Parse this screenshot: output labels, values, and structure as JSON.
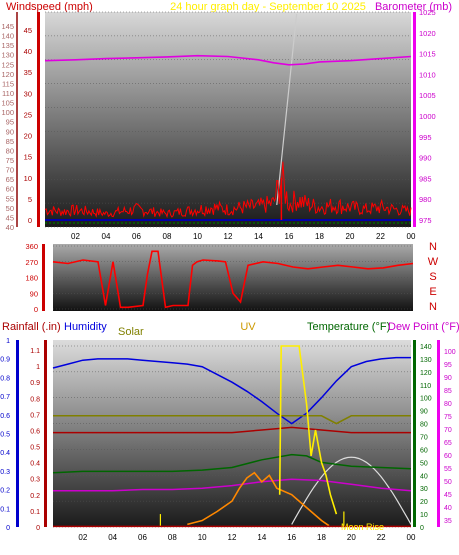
{
  "header": {
    "left_label": "Windspeed (mph)",
    "center_label": "24 hour graph day - September 10 2025",
    "right_label": "Barometer (mb)"
  },
  "colors": {
    "wind": "#ff0000",
    "gust_baseline": "#0000aa",
    "barometer": "#e000e0",
    "solar_top": "#cccccc",
    "wind_dir": "#ff0000",
    "rainfall": "#aa0000",
    "humidity": "#0000dd",
    "solar": "#808000",
    "uv": "#ffee00",
    "temperature": "#006600",
    "dew_point": "#cc00cc",
    "thsw": "#ff8800",
    "moon": "#dddddd"
  },
  "panel3_labels": {
    "rainfall": "Rainfall (.in)",
    "humidity": "Humidity",
    "thsw": "THSW",
    "solar": "Solar",
    "uv": "UV",
    "temperature": "Temperature (°F)",
    "dew_point": "Dew Point (°F)",
    "moon_rise": "Moon Rise"
  },
  "chart_data": [
    {
      "type": "line",
      "x_ticks": [
        "02",
        "04",
        "06",
        "08",
        "10",
        "12",
        "14",
        "16",
        "18",
        "20",
        "22",
        "00"
      ],
      "y_left_ticks": [
        "40",
        "45",
        "50",
        "55",
        "60",
        "65",
        "70",
        "75",
        "80",
        "85",
        "90",
        "95",
        "100",
        "105",
        "110",
        "115",
        "120",
        "125",
        "130",
        "135",
        "140",
        "145"
      ],
      "y_left_ticks_inner": [
        "0",
        "5",
        "10",
        "15",
        "20",
        "25",
        "30",
        "35",
        "40",
        "45"
      ],
      "y_right_ticks": [
        "975",
        "980",
        "985",
        "990",
        "995",
        "1000",
        "1005",
        "1010",
        "1015",
        "1020",
        "1025"
      ],
      "ylim_wind": [
        0,
        45
      ],
      "ylim_baro": [
        975,
        1025
      ],
      "xlim_hours": [
        0,
        24
      ],
      "series": [
        {
          "name": "Barometer (mb)",
          "x": [
            0,
            2,
            4,
            6,
            8,
            10,
            12,
            14,
            15,
            16,
            17,
            18,
            20,
            22,
            24
          ],
          "y": [
            1013.3,
            1013.5,
            1013.8,
            1014.0,
            1014.2,
            1014.5,
            1014.3,
            1013.5,
            1012.8,
            1012.3,
            1012.5,
            1013.0,
            1013.3,
            1013.8,
            1014.3
          ]
        },
        {
          "name": "Windspeed (mph)",
          "x": [
            0,
            1,
            2,
            3,
            4,
            5,
            6,
            7,
            8,
            9,
            10,
            11,
            12,
            13,
            14,
            15,
            15.5,
            16,
            16.5,
            17,
            18,
            19,
            20,
            21,
            22,
            23,
            24
          ],
          "y": [
            2.5,
            2,
            2.3,
            2,
            1.5,
            2,
            2.5,
            2,
            1.5,
            2,
            2.5,
            3,
            2.5,
            3,
            3.2,
            4,
            10,
            3.5,
            5,
            4,
            3,
            3.5,
            3,
            2.5,
            3,
            2.5,
            2
          ]
        }
      ]
    },
    {
      "type": "line",
      "x_ticks": [
        "02",
        "04",
        "06",
        "08",
        "10",
        "12",
        "14",
        "16",
        "18",
        "20",
        "22",
        "00"
      ],
      "y_ticks": [
        "0",
        "90",
        "180",
        "270",
        "360"
      ],
      "compass": [
        "N",
        "W",
        "S",
        "E",
        "N"
      ],
      "ylim": [
        0,
        360
      ],
      "xlim_hours": [
        0,
        24
      ],
      "series": [
        {
          "name": "Wind direction",
          "x": [
            0,
            1,
            2,
            3,
            3.5,
            4,
            4.5,
            5,
            6,
            6.3,
            6.6,
            7,
            7.5,
            8,
            9,
            9.3,
            9.6,
            10,
            11,
            11.5,
            12,
            12.5,
            13,
            14,
            15,
            16,
            17,
            18,
            19,
            20,
            21,
            22,
            23,
            24
          ],
          "y": [
            270,
            260,
            280,
            270,
            20,
            270,
            10,
            10,
            20,
            200,
            330,
            330,
            10,
            20,
            20,
            250,
            270,
            280,
            275,
            270,
            90,
            40,
            250,
            270,
            260,
            240,
            230,
            240,
            250,
            240,
            230,
            235,
            250,
            260
          ]
        }
      ]
    },
    {
      "type": "line",
      "x_ticks": [
        "02",
        "04",
        "06",
        "08",
        "10",
        "12",
        "14",
        "16",
        "18",
        "20",
        "22",
        "00"
      ],
      "y_rain_ticks": [
        "0",
        "0.1",
        "0.2",
        "0.3",
        "0.4",
        "0.5",
        "0.6",
        "0.7",
        "0.8",
        "0.9",
        "1"
      ],
      "y_humidity_ticks": [
        "0",
        "0.1",
        "0.2",
        "0.3",
        "0.4",
        "0.5",
        "0.6",
        "0.7",
        "0.8",
        "0.9",
        "1",
        "1.1"
      ],
      "y_temp_ticks": [
        "0",
        "10",
        "20",
        "30",
        "40",
        "50",
        "60",
        "70",
        "80",
        "90",
        "100",
        "110",
        "120",
        "130",
        "140"
      ],
      "y_dew_ticks": [
        "35",
        "40",
        "45",
        "50",
        "55",
        "60",
        "65",
        "70",
        "75",
        "80",
        "85",
        "90",
        "95",
        "100"
      ],
      "ylim_temp": [
        0,
        140
      ],
      "xlim_hours": [
        0,
        24
      ],
      "series": [
        {
          "name": "Humidity",
          "x": [
            0,
            1,
            2,
            3,
            4,
            5,
            6,
            7,
            8,
            9,
            10,
            11,
            12,
            13,
            14,
            15,
            16,
            17,
            18,
            19,
            20,
            21,
            22,
            23,
            24
          ],
          "y": [
            123,
            126,
            129,
            130,
            130,
            130,
            129,
            128,
            127,
            126,
            124,
            118,
            112,
            105,
            97,
            88,
            80,
            88,
            100,
            113,
            124,
            128,
            130,
            131,
            131
          ]
        },
        {
          "name": "Solar",
          "x": [
            0,
            2,
            4,
            6,
            8,
            10,
            12,
            14,
            16,
            18,
            19,
            20,
            22,
            24
          ],
          "y": [
            86,
            86,
            86,
            86,
            86,
            86,
            86,
            86,
            86,
            86,
            80,
            86,
            86,
            86
          ]
        },
        {
          "name": "Rainfall (.in)",
          "x": [
            0,
            4,
            8,
            12,
            14,
            16,
            18,
            20,
            24
          ],
          "y": [
            73,
            73,
            73,
            73,
            75,
            77,
            75,
            73,
            73
          ]
        },
        {
          "name": "Temperature (°F)",
          "x": [
            0,
            2,
            4,
            6,
            8,
            10,
            12,
            14,
            16,
            17,
            18,
            20,
            22,
            24
          ],
          "y": [
            42,
            43,
            43,
            43,
            43,
            44,
            46,
            52,
            56,
            55,
            50,
            47,
            46,
            45
          ]
        },
        {
          "name": "Dew Point (°F)",
          "x": [
            0,
            2,
            4,
            6,
            8,
            10,
            12,
            14,
            16,
            18,
            20,
            22,
            24
          ],
          "y": [
            28,
            28,
            28,
            29,
            29,
            30,
            32,
            35,
            37,
            36,
            33,
            30,
            28
          ]
        },
        {
          "name": "THSW",
          "x": [
            9,
            10,
            11,
            12,
            12.5,
            13,
            13.5,
            14,
            14.5,
            15,
            16,
            17,
            18,
            18.5
          ],
          "y": [
            2,
            5,
            12,
            20,
            30,
            38,
            42,
            35,
            40,
            30,
            25,
            15,
            5,
            1
          ]
        },
        {
          "name": "UV",
          "x": [
            15.2,
            15.3,
            16,
            16.5,
            17,
            17.3,
            17.6,
            18,
            18.3,
            18.6,
            19
          ],
          "y": [
            25,
            140,
            140,
            140,
            95,
            55,
            75,
            50,
            40,
            25,
            10
          ]
        }
      ]
    }
  ]
}
